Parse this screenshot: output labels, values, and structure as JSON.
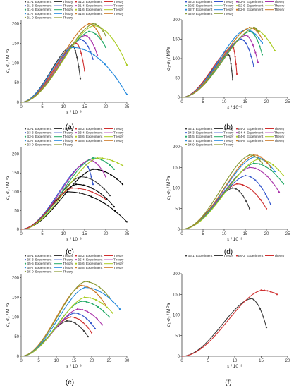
{
  "chart_data": [
    {
      "type": "scatter",
      "panel": "(a)",
      "xlabel": "ε / 10⁻³",
      "ylabel": "σ₁-σ₃ / MPa",
      "xlim": [
        0,
        25
      ],
      "ylim": [
        0,
        210
      ],
      "xticks": [
        0,
        5,
        10,
        15,
        20,
        25
      ],
      "yticks": [
        0,
        50,
        100,
        150,
        200
      ],
      "legend": [
        {
          "id": "B1-1",
          "color": "#3a3a3a"
        },
        {
          "id": "B1-2",
          "color": "#d03030"
        },
        {
          "id": "B1-3",
          "color": "#3355cc"
        },
        {
          "id": "B1-4",
          "color": "#aa33aa"
        },
        {
          "id": "B1-5",
          "color": "#22aa66"
        },
        {
          "id": "B1-6",
          "color": "#aacc22"
        },
        {
          "id": "B1-7",
          "color": "#2288dd"
        },
        {
          "id": "B1-8",
          "color": "#cc7722"
        },
        {
          "id": "B1-9",
          "color": "#889933"
        }
      ],
      "experiment_label": "Experiment",
      "theory_label": "Theory",
      "series": [
        {
          "color": "#3a3a3a",
          "peak": [
            12,
            145
          ],
          "fail": [
            14,
            60
          ]
        },
        {
          "color": "#d03030",
          "peak": [
            13,
            150
          ],
          "fail": [
            15,
            80
          ]
        },
        {
          "color": "#3355cc",
          "peak": [
            14,
            160
          ],
          "fail": [
            17,
            110
          ]
        },
        {
          "color": "#aa33aa",
          "peak": [
            15,
            170
          ],
          "fail": [
            18,
            120
          ]
        },
        {
          "color": "#22aa66",
          "peak": [
            16,
            180
          ],
          "fail": [
            20,
            140
          ]
        },
        {
          "color": "#aacc22",
          "peak": [
            17,
            195
          ],
          "fail": [
            25,
            95
          ]
        },
        {
          "color": "#2288dd",
          "peak": [
            12,
            140
          ],
          "fail": [
            25,
            20
          ]
        },
        {
          "color": "#cc7722",
          "peak": [
            16,
            200
          ],
          "fail": [
            19,
            160
          ]
        },
        {
          "color": "#889933",
          "peak": [
            17,
            200
          ],
          "fail": [
            20,
            170
          ]
        }
      ]
    },
    {
      "type": "scatter",
      "panel": "(b)",
      "xlabel": "ε / 10⁻³",
      "ylabel": "σ₁-σ₃ / MPa",
      "xlim": [
        0,
        25
      ],
      "ylim": [
        0,
        200
      ],
      "xticks": [
        0,
        5,
        10,
        15,
        20,
        25
      ],
      "yticks": [
        0,
        50,
        100,
        150,
        200
      ],
      "legend": [
        {
          "id": "B2-3",
          "color": "#3355cc"
        },
        {
          "id": "B2-4",
          "color": "#aa33aa"
        },
        {
          "id": "B2-5",
          "color": "#22aa66"
        },
        {
          "id": "B2-6",
          "color": "#aacc22"
        },
        {
          "id": "B2-7",
          "color": "#2288dd"
        },
        {
          "id": "B2-8",
          "color": "#cc7722"
        },
        {
          "id": "B2-9",
          "color": "#889933"
        }
      ],
      "experiment_label": "Experiment",
      "theory_label": "Theory",
      "series": [
        {
          "color": "#3a3a3a",
          "peak": [
            11,
            110
          ],
          "fail": [
            12,
            45
          ]
        },
        {
          "color": "#d03030",
          "peak": [
            12,
            130
          ],
          "fail": [
            13,
            60
          ]
        },
        {
          "color": "#3355cc",
          "peak": [
            14,
            150
          ],
          "fail": [
            17,
            80
          ]
        },
        {
          "color": "#aa33aa",
          "peak": [
            15,
            160
          ],
          "fail": [
            18,
            90
          ]
        },
        {
          "color": "#22aa66",
          "peak": [
            16,
            170
          ],
          "fail": [
            19,
            110
          ]
        },
        {
          "color": "#aacc22",
          "peak": [
            16,
            180
          ],
          "fail": [
            22,
            120
          ]
        },
        {
          "color": "#2288dd",
          "peak": [
            15,
            175
          ],
          "fail": [
            19,
            140
          ]
        },
        {
          "color": "#cc7722",
          "peak": [
            16,
            180
          ],
          "fail": [
            19,
            150
          ]
        },
        {
          "color": "#889933",
          "peak": [
            17,
            180
          ],
          "fail": [
            18,
            170
          ]
        }
      ]
    },
    {
      "type": "scatter",
      "panel": "(c)",
      "xlabel": "ε / 10⁻³",
      "ylabel": "σ₁-σ₃ / MPa",
      "xlim": [
        0,
        25
      ],
      "ylim": [
        0,
        220
      ],
      "xticks": [
        0,
        5,
        10,
        15,
        20,
        25
      ],
      "yticks": [
        0,
        50,
        100,
        150,
        200
      ],
      "legend": [
        {
          "id": "B3-1",
          "color": "#3a3a3a"
        },
        {
          "id": "B3-2",
          "color": "#d03030"
        },
        {
          "id": "B3-3",
          "color": "#3355cc"
        },
        {
          "id": "B3-4",
          "color": "#aa33aa"
        },
        {
          "id": "B3-5",
          "color": "#22aa66"
        },
        {
          "id": "B3-6",
          "color": "#aacc22"
        },
        {
          "id": "B3-7",
          "color": "#2288dd"
        },
        {
          "id": "B3-8",
          "color": "#cc7722"
        },
        {
          "id": "B3-9",
          "color": "#889933"
        }
      ],
      "experiment_label": "Experiment",
      "theory_label": "Theory",
      "series": [
        {
          "color": "#000000",
          "peak": [
            11,
            100
          ],
          "fail": [
            25,
            20
          ]
        },
        {
          "color": "#000000",
          "peak": [
            13,
            120
          ],
          "fail": [
            22,
            60
          ]
        },
        {
          "color": "#3a3a3a",
          "peak": [
            14,
            140
          ],
          "fail": [
            21,
            90
          ]
        },
        {
          "color": "#000000",
          "peak": [
            17,
            160
          ],
          "fail": [
            24,
            120
          ]
        },
        {
          "color": "#3355cc",
          "peak": [
            15,
            175
          ],
          "fail": [
            17,
            120
          ]
        },
        {
          "color": "#aa33aa",
          "peak": [
            16,
            185
          ],
          "fail": [
            20,
            140
          ]
        },
        {
          "color": "#22aa66",
          "peak": [
            17,
            190
          ],
          "fail": [
            22,
            160
          ]
        },
        {
          "color": "#aacc22",
          "peak": [
            18,
            190
          ],
          "fail": [
            24,
            170
          ]
        },
        {
          "color": "#d03030",
          "peak": [
            12,
            110
          ],
          "fail": [
            20,
            80
          ]
        }
      ]
    },
    {
      "type": "scatter",
      "panel": "(d)",
      "xlabel": "ε / 10⁻³",
      "ylabel": "σ₁-σ₃ / MPa",
      "xlim": [
        0,
        25
      ],
      "ylim": [
        0,
        200
      ],
      "xticks": [
        0,
        5,
        10,
        15,
        20,
        25
      ],
      "yticks": [
        0,
        50,
        100,
        150,
        200
      ],
      "legend": [
        {
          "id": "B4-1",
          "color": "#3a3a3a"
        },
        {
          "id": "B4-2",
          "color": "#d03030"
        },
        {
          "id": "B4-3",
          "color": "#3355cc"
        },
        {
          "id": "B4-4",
          "color": "#aa33aa"
        },
        {
          "id": "B4-5",
          "color": "#22aa66"
        },
        {
          "id": "B4-6",
          "color": "#aacc22"
        },
        {
          "id": "B4-7",
          "color": "#2288dd"
        },
        {
          "id": "B4-8",
          "color": "#cc7722"
        },
        {
          "id": "B4-9",
          "color": "#889933"
        }
      ],
      "experiment_label": "Experiment",
      "theory_label": "Theory",
      "series": [
        {
          "color": "#3a3a3a",
          "peak": [
            12,
            100
          ],
          "fail": [
            16,
            50
          ]
        },
        {
          "color": "#d03030",
          "peak": [
            13,
            110
          ],
          "fail": [
            20,
            50
          ]
        },
        {
          "color": "#3355cc",
          "peak": [
            15,
            130
          ],
          "fail": [
            21,
            60
          ]
        },
        {
          "color": "#aa33aa",
          "peak": [
            16,
            150
          ],
          "fail": [
            23,
            90
          ]
        },
        {
          "color": "#22aa66",
          "peak": [
            17,
            160
          ],
          "fail": [
            24,
            110
          ]
        },
        {
          "color": "#aacc22",
          "peak": [
            18,
            170
          ],
          "fail": [
            24,
            130
          ]
        },
        {
          "color": "#2288dd",
          "peak": [
            17,
            175
          ],
          "fail": [
            22,
            140
          ]
        },
        {
          "color": "#cc7722",
          "peak": [
            17,
            180
          ],
          "fail": [
            21,
            150
          ]
        },
        {
          "color": "#889933",
          "peak": [
            16,
            180
          ],
          "fail": [
            19,
            160
          ]
        }
      ]
    },
    {
      "type": "scatter",
      "panel": "(e)",
      "xlabel": "ε / 10⁻³",
      "ylabel": "σ₁-σ₃ / MPa",
      "xlim": [
        0,
        30
      ],
      "ylim": [
        0,
        210
      ],
      "xticks": [
        0,
        5,
        10,
        15,
        20,
        25,
        30
      ],
      "yticks": [
        0,
        50,
        100,
        150,
        200
      ],
      "legend": [
        {
          "id": "B5-1",
          "color": "#3a3a3a"
        },
        {
          "id": "B5-2",
          "color": "#d03030"
        },
        {
          "id": "B5-3",
          "color": "#3355cc"
        },
        {
          "id": "B5-4",
          "color": "#aa33aa"
        },
        {
          "id": "B5-5",
          "color": "#22aa66"
        },
        {
          "id": "B5-6",
          "color": "#aacc22"
        },
        {
          "id": "B5-7",
          "color": "#2288dd"
        },
        {
          "id": "B5-8",
          "color": "#cc7722"
        },
        {
          "id": "B5-9",
          "color": "#889933"
        }
      ],
      "experiment_label": "Experiment",
      "theory_label": "Theory",
      "series": [
        {
          "color": "#3a3a3a",
          "peak": [
            13,
            90
          ],
          "fail": [
            19,
            50
          ]
        },
        {
          "color": "#d03030",
          "peak": [
            14,
            100
          ],
          "fail": [
            20,
            60
          ]
        },
        {
          "color": "#3355cc",
          "peak": [
            15,
            110
          ],
          "fail": [
            21,
            70
          ]
        },
        {
          "color": "#aa33aa",
          "peak": [
            16,
            120
          ],
          "fail": [
            23,
            80
          ]
        },
        {
          "color": "#22aa66",
          "peak": [
            17,
            140
          ],
          "fail": [
            25,
            100
          ]
        },
        {
          "color": "#aacc22",
          "peak": [
            18,
            150
          ],
          "fail": [
            26,
            110
          ]
        },
        {
          "color": "#2288dd",
          "peak": [
            18,
            175
          ],
          "fail": [
            28,
            120
          ]
        },
        {
          "color": "#cc7722",
          "peak": [
            17,
            180
          ],
          "fail": [
            24,
            130
          ]
        },
        {
          "color": "#889933",
          "peak": [
            18,
            190
          ],
          "fail": [
            25,
            150
          ]
        }
      ]
    },
    {
      "type": "scatter",
      "panel": "(f)",
      "xlabel": "ε / 10⁻³",
      "ylabel": "σ₁-σ₃ / MPa",
      "xlim": [
        0,
        20
      ],
      "ylim": [
        0,
        200
      ],
      "xticks": [
        0,
        5,
        10,
        15,
        20
      ],
      "yticks": [
        0,
        50,
        100,
        150,
        200
      ],
      "legend": [
        {
          "id": "B6-1",
          "color": "#3a3a3a"
        },
        {
          "id": "B6-2",
          "color": "#d03030"
        }
      ],
      "experiment_label": "Experiment",
      "theory_label": "Theory",
      "series": [
        {
          "color": "#3a3a3a",
          "peak": [
            13,
            140
          ],
          "fail": [
            16,
            70
          ]
        },
        {
          "color": "#d03030",
          "peak": [
            15,
            160
          ],
          "fail": [
            18,
            150
          ]
        }
      ]
    }
  ]
}
